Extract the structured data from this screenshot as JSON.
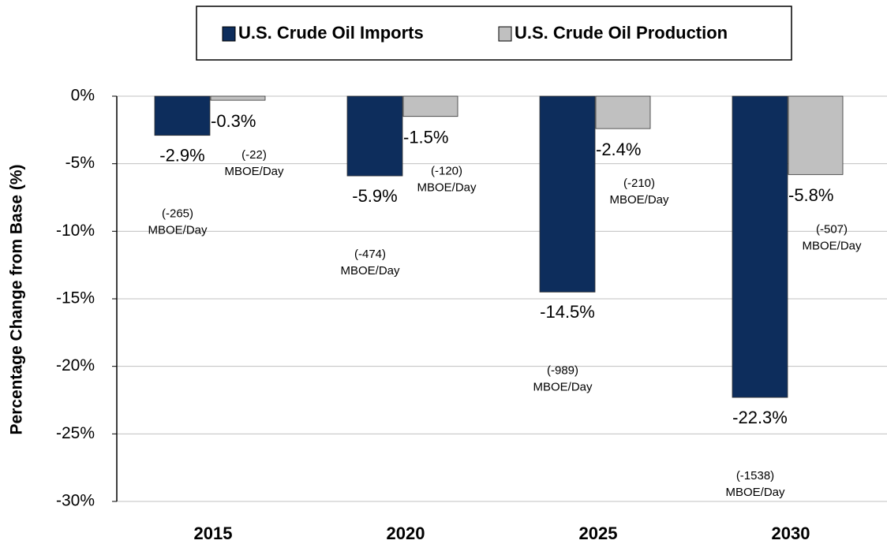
{
  "chart_data": {
    "type": "bar",
    "y_label": "Percentage Change from Base  (%)",
    "categories": [
      "2015",
      "2020",
      "2025",
      "2030"
    ],
    "series": [
      {
        "name": "U.S. Crude Oil Imports",
        "color": "#0d2d5c",
        "values": [
          -2.9,
          -5.9,
          -14.5,
          -22.3
        ],
        "value_labels": [
          "-2.9%",
          "-5.9%",
          "-14.5%",
          "-22.3%"
        ],
        "annotations": [
          {
            "text": "(-265)",
            "unit": "MBOE/Day"
          },
          {
            "text": "(-474)",
            "unit": "MBOE/Day"
          },
          {
            "text": "(-989)",
            "unit": "MBOE/Day"
          },
          {
            "text": "(-1538)",
            "unit": "MBOE/Day"
          }
        ]
      },
      {
        "name": "U.S. Crude Oil Production",
        "color": "#c0c0c0",
        "values": [
          -0.3,
          -1.5,
          -2.4,
          -5.8
        ],
        "value_labels": [
          "-0.3%",
          "-1.5%",
          "-2.4%",
          "-5.8%"
        ],
        "annotations": [
          {
            "text": "(-22)",
            "unit": "MBOE/Day"
          },
          {
            "text": "(-120)",
            "unit": "MBOE/Day"
          },
          {
            "text": "(-210)",
            "unit": "MBOE/Day"
          },
          {
            "text": "(-507)",
            "unit": "MBOE/Day"
          }
        ]
      }
    ],
    "ylim": [
      -30,
      0
    ],
    "yticks": [
      {
        "value": 0,
        "label": "0%"
      },
      {
        "value": -5,
        "label": "-5%"
      },
      {
        "value": -10,
        "label": "-10%"
      },
      {
        "value": -15,
        "label": "-15%"
      },
      {
        "value": -20,
        "label": "-20%"
      },
      {
        "value": -25,
        "label": "-25%"
      },
      {
        "value": -30,
        "label": "-30%"
      }
    ],
    "grid": true,
    "legend": "top"
  }
}
